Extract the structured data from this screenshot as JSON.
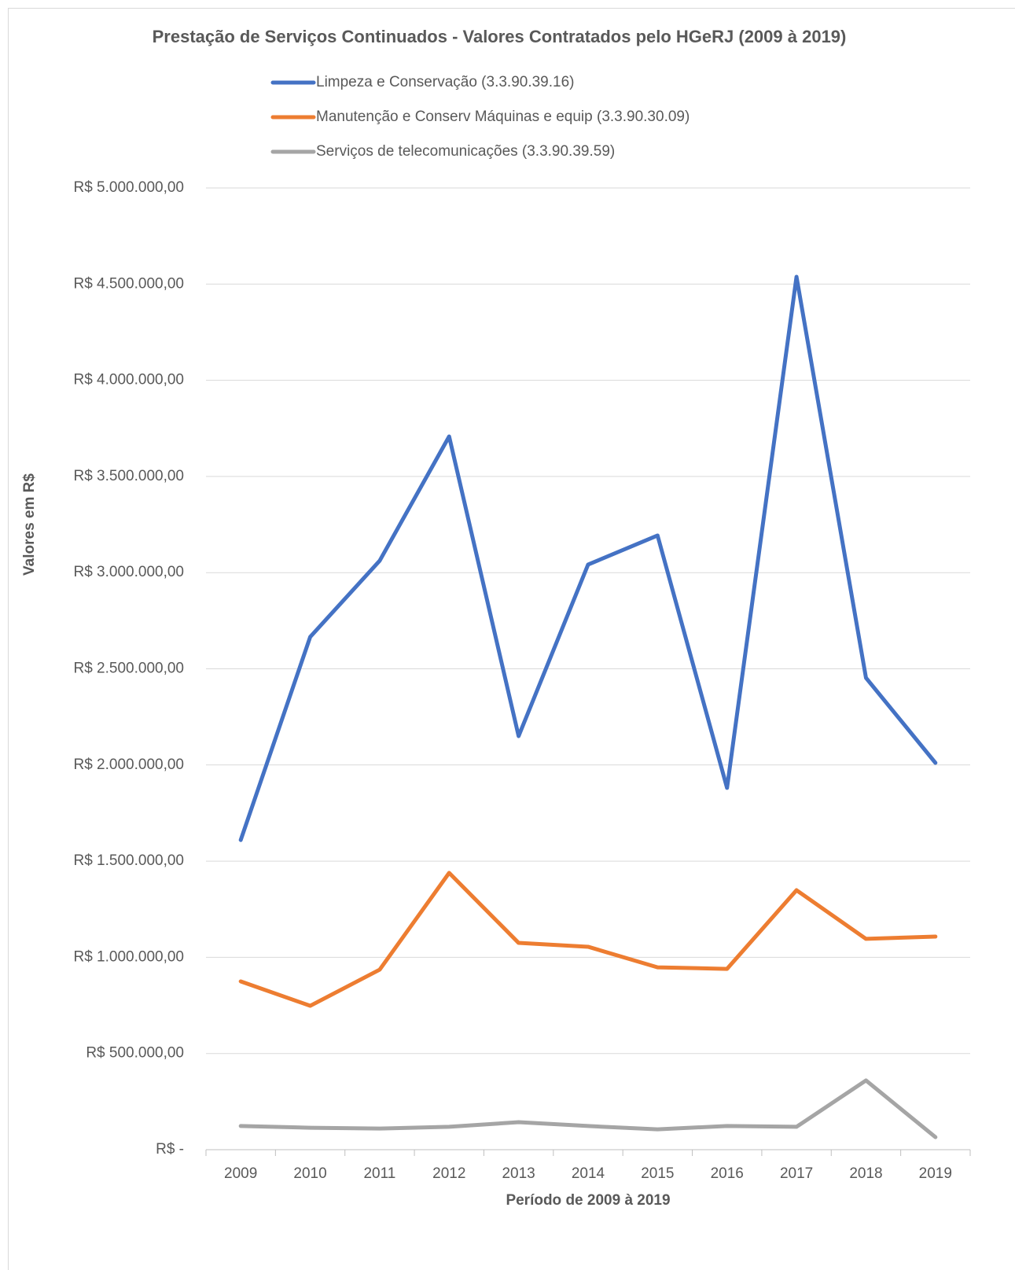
{
  "chart_data": {
    "type": "line",
    "title": "Prestação de Serviços Continuados - Valores Contratados pelo HGeRJ (2009 à 2019)",
    "x_label": "Período de 2009 à 2019",
    "y_label": "Valores em R$",
    "categories": [
      "2009",
      "2010",
      "2011",
      "2012",
      "2013",
      "2014",
      "2015",
      "2016",
      "2017",
      "2018",
      "2019"
    ],
    "series": [
      {
        "name": "Limpeza e Conservação (3.3.90.39.16)",
        "color": "#4472c4",
        "values": [
          1610000,
          2666000,
          3062000,
          3708000,
          2150000,
          3042000,
          3193000,
          1881000,
          4538000,
          2453000,
          2011000
        ]
      },
      {
        "name": "Manutenção e Conserv Máquinas e equip (3.3.90.30.09)",
        "color": "#ed7d31",
        "values": [
          875000,
          748000,
          936000,
          1439000,
          1075000,
          1055000,
          948000,
          940000,
          1349000,
          1096000,
          1108000
        ]
      },
      {
        "name": "Serviços de telecomunicações (3.3.90.39.59)",
        "color": "#a5a5a5",
        "values": [
          123000,
          114000,
          110000,
          119000,
          143000,
          123000,
          106000,
          123000,
          119000,
          360000,
          65000
        ]
      }
    ],
    "ylim": [
      0,
      5000000
    ],
    "yticks": [
      {
        "value": 0,
        "label": "R$ -"
      },
      {
        "value": 500000,
        "label": "R$ 500.000,00"
      },
      {
        "value": 1000000,
        "label": "R$ 1.000.000,00"
      },
      {
        "value": 1500000,
        "label": "R$ 1.500.000,00"
      },
      {
        "value": 2000000,
        "label": "R$ 2.000.000,00"
      },
      {
        "value": 2500000,
        "label": "R$ 2.500.000,00"
      },
      {
        "value": 3000000,
        "label": "R$ 3.000.000,00"
      },
      {
        "value": 3500000,
        "label": "R$ 3.500.000,00"
      },
      {
        "value": 4000000,
        "label": "R$ 4.000.000,00"
      },
      {
        "value": 4500000,
        "label": "R$ 4.500.000,00"
      },
      {
        "value": 5000000,
        "label": "R$ 5.000.000,00"
      }
    ],
    "grid": true,
    "legend": "top"
  }
}
